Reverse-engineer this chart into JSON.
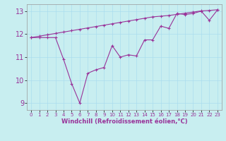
{
  "xlabel": "Windchill (Refroidissement éolien,°C)",
  "bg_color": "#c8eef0",
  "line_color": "#993399",
  "grid_color": "#aaddee",
  "xlim": [
    -0.5,
    23.5
  ],
  "ylim": [
    8.7,
    13.3
  ],
  "xticks": [
    0,
    1,
    2,
    3,
    4,
    5,
    6,
    7,
    8,
    9,
    10,
    11,
    12,
    13,
    14,
    15,
    16,
    17,
    18,
    19,
    20,
    21,
    22,
    23
  ],
  "yticks": [
    9,
    10,
    11,
    12,
    13
  ],
  "smooth_x": [
    0,
    1,
    2,
    3,
    4,
    5,
    6,
    7,
    8,
    9,
    10,
    11,
    12,
    13,
    14,
    15,
    16,
    17,
    18,
    19,
    20,
    21,
    22,
    23
  ],
  "smooth_y": [
    11.85,
    11.91,
    11.97,
    12.03,
    12.09,
    12.15,
    12.21,
    12.27,
    12.33,
    12.39,
    12.45,
    12.51,
    12.57,
    12.63,
    12.69,
    12.75,
    12.78,
    12.81,
    12.86,
    12.91,
    12.96,
    13.01,
    13.03,
    13.06
  ],
  "jagged_x": [
    0,
    1,
    2,
    3,
    4,
    5,
    6,
    7,
    8,
    9,
    10,
    11,
    12,
    13,
    14,
    15,
    16,
    17,
    18,
    19,
    20,
    21,
    22,
    23
  ],
  "jagged_y": [
    11.85,
    11.85,
    11.85,
    11.85,
    10.9,
    9.85,
    9.0,
    10.3,
    10.45,
    10.55,
    11.5,
    11.0,
    11.1,
    11.05,
    11.75,
    11.75,
    12.35,
    12.25,
    12.9,
    12.85,
    12.9,
    13.0,
    12.6,
    13.05
  ]
}
